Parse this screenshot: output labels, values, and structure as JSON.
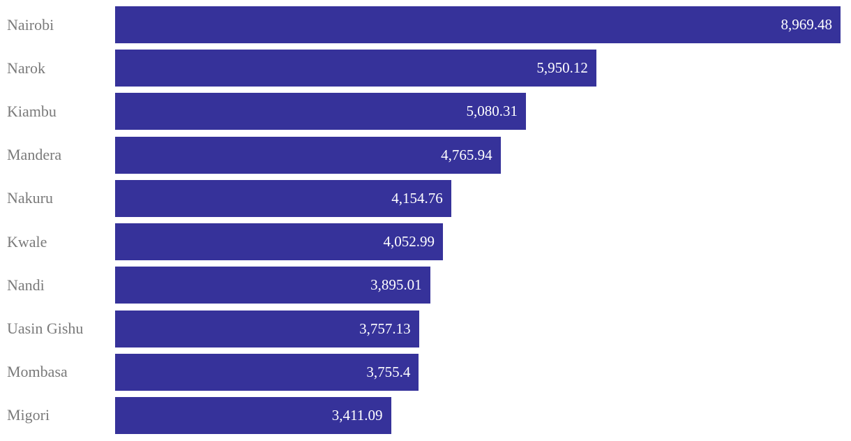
{
  "chart_data": {
    "type": "bar",
    "orientation": "horizontal",
    "title": "",
    "xlabel": "",
    "ylabel": "",
    "grid": false,
    "legend": null,
    "xlim": [
      0,
      8969.48
    ],
    "categories": [
      "Nairobi",
      "Narok",
      "Kiambu",
      "Mandera",
      "Nakuru",
      "Kwale",
      "Nandi",
      "Uasin Gishu",
      "Mombasa",
      "Migori"
    ],
    "values": [
      8969.48,
      5950.12,
      5080.31,
      4765.94,
      4154.76,
      4052.99,
      3895.01,
      3757.13,
      3755.4,
      3411.09
    ],
    "value_labels": [
      "8,969.48",
      "5,950.12",
      "5,080.31",
      "4,765.94",
      "4,154.76",
      "4,052.99",
      "3,895.01",
      "3,757.13",
      "3,755.4",
      "3,411.09"
    ],
    "colors": {
      "bar": "#36329A",
      "category_label": "#7a7a7a",
      "value_label": "#ffffff",
      "background": "#ffffff"
    }
  }
}
